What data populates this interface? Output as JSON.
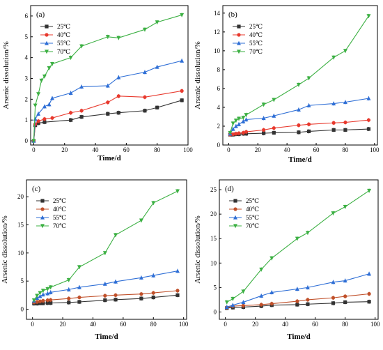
{
  "charts": [
    {
      "panel_label": "(a)",
      "chart_data": {
        "type": "line",
        "xlabel": "Time/d",
        "ylabel": "Arsenic dissolution/%",
        "xlim": [
          -2,
          100
        ],
        "ylim": [
          -0.2,
          6.5
        ],
        "xticks": [
          0,
          20,
          40,
          60,
          80,
          100
        ],
        "yticks": [
          0,
          1,
          2,
          3,
          4,
          5,
          6
        ],
        "legend_position": "top-left",
        "series": [
          {
            "name": "25℃",
            "color": "#333333",
            "marker": "square",
            "x": [
              0,
              1,
              3,
              7,
              24,
              31,
              48,
              55,
              72,
              80,
              96
            ],
            "y": [
              0,
              0.75,
              0.85,
              0.9,
              1.0,
              1.15,
              1.3,
              1.35,
              1.45,
              1.6,
              1.95
            ]
          },
          {
            "name": "40℃",
            "color": "#e8392d",
            "marker": "circle",
            "x": [
              0,
              1,
              3,
              7,
              12,
              24,
              31,
              48,
              55,
              72,
              96
            ],
            "y": [
              0,
              0.8,
              0.95,
              1.05,
              1.1,
              1.35,
              1.45,
              1.85,
              2.15,
              2.1,
              2.4
            ]
          },
          {
            "name": "55℃",
            "color": "#2f6fd6",
            "marker": "triangle",
            "x": [
              0,
              1,
              3,
              7,
              10,
              12,
              24,
              31,
              48,
              55,
              72,
              80,
              96
            ],
            "y": [
              0,
              1.05,
              1.3,
              1.65,
              1.75,
              2.05,
              2.3,
              2.6,
              2.65,
              3.05,
              3.3,
              3.55,
              3.85
            ]
          },
          {
            "name": "70℃",
            "color": "#3cb043",
            "marker": "triangle-down",
            "x": [
              0,
              1,
              3,
              5,
              7,
              10,
              12,
              24,
              31,
              48,
              55,
              72,
              80,
              96
            ],
            "y": [
              0,
              1.7,
              2.25,
              2.9,
              3.1,
              3.5,
              3.7,
              4.0,
              4.55,
              5.0,
              4.95,
              5.35,
              5.7,
              6.05
            ]
          }
        ]
      }
    },
    {
      "panel_label": "(b)",
      "chart_data": {
        "type": "line",
        "xlabel": "Time/d",
        "ylabel": "Arsenic dissolution/%",
        "xlim": [
          -4,
          102
        ],
        "ylim": [
          0,
          14.8
        ],
        "xticks": [
          0,
          20,
          40,
          60,
          80,
          100
        ],
        "yticks": [
          0,
          2,
          4,
          6,
          8,
          10,
          12,
          14
        ],
        "legend_position": "top-left",
        "series": [
          {
            "name": "25℃",
            "color": "#333333",
            "marker": "square",
            "x": [
              1,
              3,
              5,
              7,
              10,
              12,
              24,
              31,
              48,
              55,
              72,
              80,
              96
            ],
            "y": [
              1.1,
              1.1,
              1.15,
              1.15,
              1.2,
              1.2,
              1.25,
              1.3,
              1.35,
              1.45,
              1.6,
              1.6,
              1.7
            ]
          },
          {
            "name": "40℃",
            "color": "#e8392d",
            "marker": "circle",
            "x": [
              1,
              3,
              5,
              7,
              10,
              12,
              24,
              31,
              48,
              55,
              72,
              80,
              96
            ],
            "y": [
              1.1,
              1.15,
              1.2,
              1.25,
              1.3,
              1.4,
              1.6,
              1.8,
              2.1,
              2.2,
              2.35,
              2.4,
              2.65
            ]
          },
          {
            "name": "55℃",
            "color": "#2f6fd6",
            "marker": "triangle",
            "x": [
              1,
              3,
              5,
              7,
              10,
              12,
              24,
              31,
              48,
              55,
              72,
              80,
              96
            ],
            "y": [
              1.2,
              1.7,
              2.0,
              2.2,
              2.5,
              2.7,
              2.85,
              3.1,
              3.75,
              4.2,
              4.4,
              4.55,
              4.95
            ]
          },
          {
            "name": "70℃",
            "color": "#3cb043",
            "marker": "triangle-down",
            "x": [
              1,
              3,
              5,
              7,
              10,
              12,
              24,
              31,
              48,
              55,
              72,
              80,
              96
            ],
            "y": [
              1.3,
              2.3,
              2.6,
              2.8,
              2.9,
              3.2,
              4.3,
              4.8,
              6.4,
              7.1,
              9.3,
              10.0,
              13.7
            ]
          }
        ]
      }
    },
    {
      "panel_label": "(c)",
      "chart_data": {
        "type": "line",
        "xlabel": "Time/d",
        "ylabel": "Arsenic dissolution/%",
        "xlim": [
          -4,
          102
        ],
        "ylim": [
          -1.8,
          23
        ],
        "xticks": [
          0,
          20,
          40,
          60,
          80,
          100
        ],
        "yticks": [
          0,
          5,
          10,
          15,
          20
        ],
        "legend_position": "top-left",
        "series": [
          {
            "name": "25℃",
            "color": "#333333",
            "marker": "square",
            "x": [
              1,
              3,
              5,
              7,
              10,
              12,
              24,
              31,
              48,
              55,
              72,
              80,
              96
            ],
            "y": [
              1.0,
              1.0,
              1.05,
              1.05,
              1.1,
              1.1,
              1.2,
              1.3,
              1.6,
              1.7,
              1.9,
              2.1,
              2.5
            ]
          },
          {
            "name": "40℃",
            "color": "#c0502a",
            "marker": "circle",
            "x": [
              1,
              3,
              5,
              7,
              10,
              12,
              24,
              31,
              48,
              55,
              72,
              80,
              96
            ],
            "y": [
              1.2,
              1.3,
              1.4,
              1.5,
              1.6,
              1.65,
              1.9,
              2.1,
              2.4,
              2.5,
              2.7,
              2.9,
              3.3
            ]
          },
          {
            "name": "55℃",
            "color": "#2f6fd6",
            "marker": "triangle",
            "x": [
              1,
              3,
              5,
              7,
              10,
              12,
              24,
              31,
              48,
              55,
              72,
              80,
              96
            ],
            "y": [
              1.5,
              2.0,
              2.3,
              2.6,
              2.8,
              3.0,
              3.5,
              3.9,
              4.5,
              4.9,
              5.6,
              6.0,
              6.8
            ]
          },
          {
            "name": "70℃",
            "color": "#3cb043",
            "marker": "triangle-down",
            "x": [
              1,
              3,
              5,
              7,
              10,
              12,
              24,
              31,
              48,
              55,
              72,
              80,
              96
            ],
            "y": [
              1.6,
              2.4,
              2.9,
              3.3,
              3.6,
              3.9,
              5.2,
              7.5,
              10.0,
              13.2,
              15.8,
              18.9,
              21.0
            ]
          }
        ]
      }
    },
    {
      "panel_label": "(d)",
      "chart_data": {
        "type": "line",
        "xlabel": "Time/d",
        "ylabel": "Arsenic dissolution/%",
        "xlim": [
          -4,
          102
        ],
        "ylim": [
          -1.5,
          27
        ],
        "xticks": [
          0,
          20,
          40,
          60,
          80,
          100
        ],
        "yticks": [
          0,
          5,
          10,
          15,
          20,
          25
        ],
        "legend_position": "top-left",
        "series": [
          {
            "name": "25℃",
            "color": "#333333",
            "marker": "square",
            "x": [
              1,
              5,
              12,
              24,
              31,
              48,
              55,
              72,
              80,
              96
            ],
            "y": [
              0.8,
              0.9,
              1.0,
              1.2,
              1.4,
              1.5,
              1.6,
              1.8,
              2.0,
              2.1
            ]
          },
          {
            "name": "40℃",
            "color": "#c0502a",
            "marker": "circle",
            "x": [
              1,
              5,
              12,
              24,
              31,
              48,
              55,
              72,
              80,
              96
            ],
            "y": [
              0.9,
              1.2,
              1.3,
              1.5,
              1.7,
              2.2,
              2.5,
              2.9,
              3.2,
              3.7
            ]
          },
          {
            "name": "55℃",
            "color": "#2f6fd6",
            "marker": "triangle",
            "x": [
              1,
              5,
              12,
              24,
              31,
              48,
              55,
              72,
              80,
              96
            ],
            "y": [
              1.0,
              1.4,
              2.0,
              3.3,
              4.0,
              4.7,
              5.0,
              6.1,
              6.4,
              7.8
            ]
          },
          {
            "name": "70℃",
            "color": "#3cb043",
            "marker": "triangle-down",
            "x": [
              1,
              5,
              12,
              24,
              31,
              48,
              55,
              72,
              80,
              96
            ],
            "y": [
              2.0,
              2.7,
              4.2,
              8.7,
              11.0,
              15.0,
              16.2,
              20.2,
              21.5,
              24.8
            ]
          }
        ]
      }
    }
  ]
}
